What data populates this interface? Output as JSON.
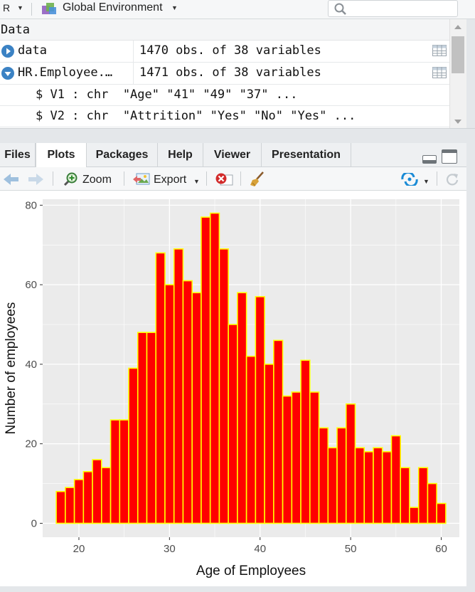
{
  "env_toolbar": {
    "language": "R",
    "environment_label": "Global Environment",
    "search_placeholder": ""
  },
  "environment": {
    "section_title": "Data",
    "rows": [
      {
        "name": "data",
        "value": "1470 obs. of 38 variables",
        "expanded": false
      },
      {
        "name": "HR.Employee.…",
        "value": "1471 obs. of 38 variables",
        "expanded": true
      }
    ],
    "sub_rows": [
      "$ V1 : chr  \"Age\" \"41\" \"49\" \"37\" ...",
      "$ V2 : chr  \"Attrition\" \"Yes\" \"No\" \"Yes\" ..."
    ]
  },
  "tabs": [
    {
      "label": "Files",
      "active": false
    },
    {
      "label": "Plots",
      "active": true
    },
    {
      "label": "Packages",
      "active": false
    },
    {
      "label": "Help",
      "active": false
    },
    {
      "label": "Viewer",
      "active": false
    },
    {
      "label": "Presentation",
      "active": false
    }
  ],
  "plot_toolbar": {
    "zoom_label": "Zoom",
    "export_label": "Export"
  },
  "colors": {
    "bar_fill": "#ff0000",
    "bar_outline": "#ffff00",
    "panel_bg": "#ebebeb",
    "grid": "#ffffff"
  },
  "chart_data": {
    "type": "bar",
    "title": "",
    "xlabel": "Age of Employees",
    "ylabel": "Number of employees",
    "xlim": [
      16,
      62
    ],
    "ylim": [
      -3.5,
      81.5
    ],
    "x_ticks": [
      20,
      30,
      40,
      50,
      60
    ],
    "y_ticks": [
      0,
      20,
      40,
      60,
      80
    ],
    "grid": true,
    "x": [
      18,
      19,
      20,
      21,
      22,
      23,
      24,
      25,
      26,
      27,
      28,
      29,
      30,
      31,
      32,
      33,
      34,
      35,
      36,
      37,
      38,
      39,
      40,
      41,
      42,
      43,
      44,
      45,
      46,
      47,
      48,
      49,
      50,
      51,
      52,
      53,
      54,
      55,
      56,
      57,
      58,
      59,
      60
    ],
    "values": [
      8,
      9,
      11,
      13,
      16,
      14,
      26,
      26,
      39,
      48,
      48,
      68,
      60,
      69,
      61,
      58,
      77,
      78,
      69,
      50,
      58,
      42,
      57,
      40,
      46,
      32,
      33,
      41,
      33,
      24,
      19,
      24,
      30,
      19,
      18,
      19,
      18,
      22,
      14,
      4,
      14,
      10,
      5
    ]
  }
}
